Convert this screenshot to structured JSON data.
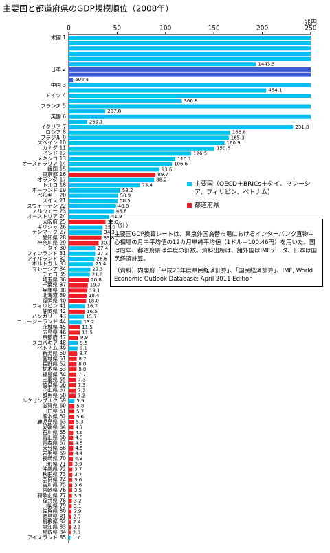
{
  "chart_data": {
    "type": "wrapped-bar",
    "title": "主要国と都道府県のGDP規模順位（2008年）",
    "x_unit": "兆円",
    "xlim": [
      0,
      250
    ],
    "xticks": [
      0,
      50,
      100,
      150,
      200,
      250
    ],
    "categories": [
      "米国 1",
      "日本 2",
      "中国 3",
      "ドイツ 4",
      "フランス 5",
      "英国 6",
      "イタリア 7",
      "ロシア 8",
      "ブラジル 9",
      "スペイン 10",
      "カナダ 11",
      "インド 12",
      "メキシコ 13",
      "オーストラリア 14",
      "韓国 15",
      "東京都 16",
      "オランダ 17",
      "トルコ 18",
      "ポーランド 19",
      "ベルギー 20",
      "スイス 21",
      "スウェーデン 22",
      "ノルウェー 23",
      "オーストリア 24",
      "大阪府 25",
      "ギリシャ 26",
      "デンマーク 27",
      "愛知県 28",
      "神奈川県 29",
      "タイ 30",
      "フィンランド 31",
      "アイルランド 32",
      "ポルトガル 33",
      "マレーシア 34",
      "チェコ 35",
      "埼玉県 36",
      "千葉県 37",
      "兵庫県 38",
      "北海道 39",
      "福岡県 40",
      "フィリピン 41",
      "静岡県 42",
      "ハンガリー 43",
      "ニュージーランド 44",
      "茨城県 45",
      "広島県 46",
      "京都府 47",
      "スロバキア 48",
      "ベトナム 49",
      "新潟県 50",
      "宮城県 51",
      "長野県 52",
      "栃木県 53",
      "福島県 54",
      "三重県 55",
      "岐阜県 56",
      "岡山県 57",
      "群馬県 58",
      "ルクセンブルク 59",
      "滋賀県 60",
      "山口県 61",
      "熊本県 62",
      "鹿児島県 63",
      "愛媛県 64",
      "石川県 65",
      "富山県 66",
      "青森県 67",
      "大分県 68",
      "岩手県 69",
      "長崎県 70",
      "山形県 71",
      "沖縄県 72",
      "秋田県 73",
      "奈良県 74",
      "香川県 75",
      "宮崎県 76",
      "和歌山県 77",
      "福井県 78",
      "山梨県 79",
      "佐賀県 80",
      "徳島県 81",
      "島根県 82",
      "高知県 83",
      "鳥取県 84",
      "アイスランド 85"
    ],
    "values": [
      1443.5,
      504.4,
      454.1,
      366.8,
      287.8,
      269.1,
      231.8,
      166.8,
      165.3,
      160.9,
      150.6,
      126.5,
      110.1,
      106.6,
      93.6,
      89.7,
      88.2,
      73.4,
      53.2,
      50.9,
      50.5,
      48.8,
      46.8,
      41.9,
      38.0,
      35.0,
      34.3,
      33.8,
      30.9,
      27.4,
      27.3,
      26.6,
      25.4,
      22.3,
      21.8,
      20.8,
      19.7,
      19.1,
      18.4,
      18.0,
      16.7,
      16.5,
      15.7,
      13.2,
      11.5,
      11.5,
      9.9,
      9.5,
      9.1,
      8.7,
      8.2,
      8.0,
      8.0,
      7.7,
      7.3,
      7.3,
      7.3,
      7.2,
      5.9,
      5.8,
      5.7,
      5.6,
      5.3,
      4.7,
      4.6,
      4.5,
      4.5,
      4.5,
      4.4,
      4.3,
      3.9,
      3.7,
      3.7,
      3.6,
      3.6,
      3.5,
      3.3,
      3.2,
      3.1,
      2.9,
      2.7,
      2.4,
      2.2,
      2.0,
      1.7
    ],
    "value_labels": [
      "1443.5",
      "504.4",
      "454.1",
      "366.8",
      "287.8",
      "269.1",
      "231.8",
      "166.8",
      "165.3",
      "160.9",
      "150.6",
      "126.5",
      "110.1",
      "106.6",
      "93.6",
      "89.7",
      "88.2",
      "73.4",
      "53.2",
      "50.9",
      "50.5",
      "48.8",
      "46.8",
      "41.9",
      "38.0",
      "35.0",
      "34.3",
      "33.8",
      "30.9",
      "27.4",
      "27.3",
      "26.6",
      "25.4",
      "22.3",
      "21.8",
      "20.8",
      "19.7",
      "19.1",
      "18.4",
      "18.0",
      "16.7",
      "16.5",
      "15.7",
      "13.2",
      "11.5",
      "11.5",
      "9.9",
      "9.5",
      "9.1",
      "8.7",
      "8.2",
      "8.0",
      "8.0",
      "7.7",
      "7.3",
      "7.3",
      "7.3",
      "7.2",
      "5.9",
      "5.8",
      "5.7",
      "5.6",
      "5.3",
      "4.7",
      "4.6",
      "4.5",
      "4.5",
      "4.5",
      "4.4",
      "4.3",
      "3.9",
      "3.7",
      "3.7",
      "3.6",
      "3.6",
      "3.5",
      "3.3",
      "3.2",
      "3.1",
      "2.9",
      "2.7",
      "2.4",
      "2.2",
      "2.0",
      "1.7"
    ],
    "colors": [
      "#00c0f0",
      "#3b5bd6",
      "#00c0f0",
      "#00c0f0",
      "#00c0f0",
      "#00c0f0",
      "#00c0f0",
      "#00c0f0",
      "#00c0f0",
      "#00c0f0",
      "#00c0f0",
      "#00c0f0",
      "#00c0f0",
      "#00c0f0",
      "#00c0f0",
      "#ee1c25",
      "#00c0f0",
      "#00c0f0",
      "#00c0f0",
      "#00c0f0",
      "#00c0f0",
      "#00c0f0",
      "#00c0f0",
      "#00c0f0",
      "#ee1c25",
      "#00c0f0",
      "#00c0f0",
      "#ee1c25",
      "#ee1c25",
      "#00c0f0",
      "#00c0f0",
      "#00c0f0",
      "#00c0f0",
      "#00c0f0",
      "#00c0f0",
      "#ee1c25",
      "#ee1c25",
      "#ee1c25",
      "#ee1c25",
      "#ee1c25",
      "#00c0f0",
      "#ee1c25",
      "#00c0f0",
      "#00c0f0",
      "#ee1c25",
      "#ee1c25",
      "#ee1c25",
      "#00c0f0",
      "#00c0f0",
      "#ee1c25",
      "#ee1c25",
      "#ee1c25",
      "#ee1c25",
      "#ee1c25",
      "#ee1c25",
      "#ee1c25",
      "#ee1c25",
      "#ee1c25",
      "#00c0f0",
      "#ee1c25",
      "#ee1c25",
      "#ee1c25",
      "#ee1c25",
      "#ee1c25",
      "#ee1c25",
      "#ee1c25",
      "#ee1c25",
      "#ee1c25",
      "#ee1c25",
      "#ee1c25",
      "#ee1c25",
      "#ee1c25",
      "#ee1c25",
      "#ee1c25",
      "#ee1c25",
      "#ee1c25",
      "#ee1c25",
      "#ee1c25",
      "#ee1c25",
      "#ee1c25",
      "#ee1c25",
      "#ee1c25",
      "#ee1c25",
      "#ee1c25",
      "#00c0f0"
    ],
    "legend": [
      {
        "name": "主要国（OECD＋BRICs＋タイ、マレーシア、フィリピン、ベトナム）",
        "color": "#00c0f0"
      },
      {
        "name": "都道府県",
        "color": "#ee1c25"
      }
    ],
    "note": {
      "heading": "（注）",
      "text": "主要国GDP換算レートは、東京外国為替市場におけるインターバンク直物中心相場の月中平均値の12カ月単純平均値（1ドル＝100.46円）を用いた。国は暦年、都道府県は年度の計数。資料出所は、諸外国はIMFデータ、日本は国民経済計算。",
      "source": "（資料）内閣府「平成20年度県民経済計算」、「国民経済計算」、IMF, World Economic Outlook Database: April 2011 Edition"
    }
  }
}
